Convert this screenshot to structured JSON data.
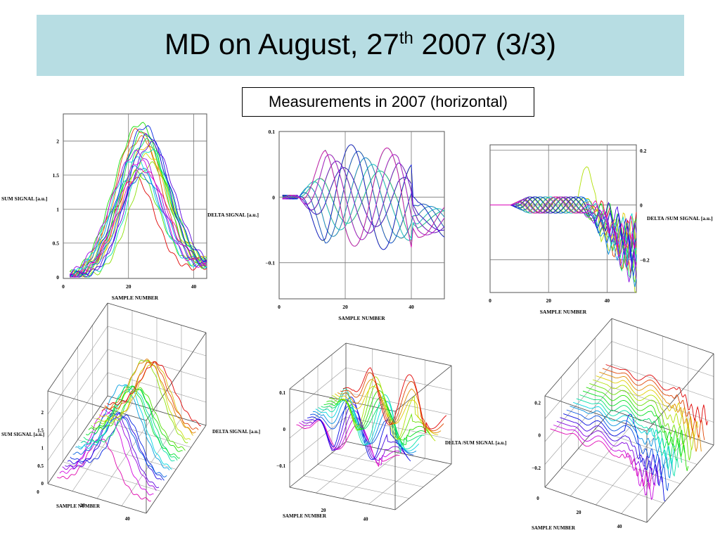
{
  "slide": {
    "title_main": "MD on August, 27",
    "title_sup": "th",
    "title_end": " 2007 (3/3)",
    "caption": "Measurements in 2007 (horizontal)"
  },
  "labels": {
    "xlabel": "SAMPLE  NUMBER",
    "sum_ylabel": "SUM SIGNAL [a.u.]",
    "delta_ylabel": "DELTA  SIGNAL [a.u.]",
    "ratio_ylabel": "DELTA /SUM SIGNAL [a.u.]",
    "sum_ylabel_3d": "SUM SIGNAL [a.u.]",
    "delta_ylabel_3d": "DELTA   SIGNAL [a.u.]",
    "ratio_ylabel_3d": "DELTA /SUM SIGNAL [a.u.]"
  },
  "chart_data": [
    {
      "type": "line",
      "xlabel": "SAMPLE  NUMBER",
      "ylabel": "SUM SIGNAL [a.u.]",
      "xlim": [
        0,
        44
      ],
      "ylim": [
        0,
        2.4
      ],
      "xticks": [
        "0",
        "20",
        "40"
      ],
      "yticks": [
        "0",
        "0.5",
        "1",
        "1.5",
        "2"
      ],
      "grid": true,
      "series_count": 20,
      "shape": "gaussian",
      "peak_range": [
        1.45,
        2.3
      ],
      "peak_x_range": [
        22,
        27
      ]
    },
    {
      "type": "line",
      "xlabel": "SAMPLE  NUMBER",
      "ylabel": "DELTA  SIGNAL [a.u.]",
      "xlim": [
        0,
        50
      ],
      "ylim": [
        -0.15,
        0.1
      ],
      "xticks": [
        "0",
        "20",
        "40"
      ],
      "yticks": [
        "0.1",
        "0",
        "−0.1"
      ],
      "grid": true,
      "series_count": 18,
      "shape": "oscillation",
      "amplitude_range": [
        -0.1,
        0.075
      ]
    },
    {
      "type": "line",
      "xlabel": "SAMPLE  NUMBER",
      "ylabel": "DELTA /SUM SIGNAL [a.u.]",
      "xlim": [
        0,
        50
      ],
      "ylim": [
        -0.3,
        0.22
      ],
      "xticks": [
        "0",
        "20",
        "40"
      ],
      "yticks": [
        "0.2",
        "0",
        "−0.2"
      ],
      "grid": true,
      "series_count": 18,
      "shape": "ratio"
    },
    {
      "type": "line",
      "projection": "3d",
      "xlabel": "SAMPLE  NUMBER",
      "ylabel": "SUM SIGNAL [a.u.]",
      "xticks": [
        "0",
        "20",
        "40"
      ],
      "yticks": [
        "0",
        "0.5",
        "1",
        "1.5",
        "2"
      ],
      "series_count": 20,
      "shape": "gaussian"
    },
    {
      "type": "line",
      "projection": "3d",
      "xlabel": "SAMPLE  NUMBER",
      "ylabel": "DELTA   SIGNAL [a.u.]",
      "xticks": [
        "20",
        "40"
      ],
      "yticks": [
        "0.1",
        "0",
        "−0.1"
      ],
      "series_count": 18,
      "shape": "oscillation"
    },
    {
      "type": "line",
      "projection": "3d",
      "xlabel": "SAMPLE  NUMBER",
      "ylabel": "DELTA /SUM SIGNAL [a.u.]",
      "xticks": [
        "0",
        "20",
        "40"
      ],
      "yticks": [
        "0.2",
        "0",
        "−0.2"
      ],
      "series_count": 18,
      "shape": "ratio"
    }
  ]
}
